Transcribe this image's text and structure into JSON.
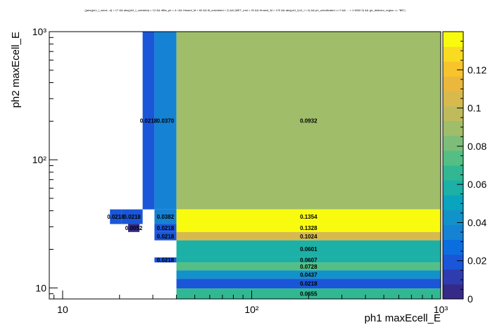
{
  "chart_data": {
    "type": "heatmap",
    "title": "((abs(ph1_l_unlvd...d) > 17 && abs(ph2_l_unlvdeta) < 12 && rlBts_ph < 4 / && Hmeed_M > 60 && fit_unlvdeted < 2) && (MET_met < 20 && Hmeed_M > 170 && abs(ph1_t)<0_l < 0) && ph_unlvdfeated == 0 && ... < 1.5000 0) && (pt_detector_region == \"BB\")",
    "xlabel": "ph1 maxEcell_E",
    "ylabel": "ph2 maxEcell_E",
    "xscale": "log",
    "yscale": "log",
    "xlim": [
      8.5,
      1000
    ],
    "ylim": [
      8.2,
      1000
    ],
    "x_ticks": [
      {
        "value": 10,
        "label": "10"
      },
      {
        "value": 100,
        "label": "10²"
      },
      {
        "value": 1000,
        "label": "10³"
      }
    ],
    "y_ticks": [
      {
        "value": 10,
        "label": "10"
      },
      {
        "value": 100,
        "label": "10²"
      },
      {
        "value": 1000,
        "label": "10³"
      }
    ],
    "z_range": [
      0,
      0.14
    ],
    "z_ticks": [
      "0",
      "0.02",
      "0.04",
      "0.06",
      "0.08",
      "0.1",
      "0.12"
    ],
    "z_tick_values": [
      0,
      0.02,
      0.04,
      0.06,
      0.08,
      0.1,
      0.12
    ],
    "palette": [
      "#352a87",
      "#2e3cb0",
      "#1a56d8",
      "#0b6ee0",
      "#1582d4",
      "#1193c9",
      "#0aa4bf",
      "#1cb0a6",
      "#31b893",
      "#53bf85",
      "#7cbe79",
      "#a0bd69",
      "#bfbb5d",
      "#d7b94e",
      "#eab83d",
      "#f8c42c",
      "#f9db21",
      "#f9fb0e"
    ],
    "cells": [
      {
        "x0": 26.5,
        "x1": 30.6,
        "y0": 41,
        "y1": 1000,
        "value": 0.0218,
        "label": "0.0218"
      },
      {
        "x0": 30.6,
        "x1": 40,
        "y0": 41,
        "y1": 1000,
        "value": 0.037,
        "label": "0.0370"
      },
      {
        "x0": 40,
        "x1": 1000,
        "y0": 41,
        "y1": 1000,
        "value": 0.0932,
        "label": "0.0932"
      },
      {
        "x0": 17.8,
        "x1": 20.5,
        "y0": 31.5,
        "y1": 41,
        "value": 0.0218,
        "label": "0.0218"
      },
      {
        "x0": 20.5,
        "x1": 26.5,
        "y0": 31.5,
        "y1": 41,
        "value": 0.0218,
        "label": "0.0218"
      },
      {
        "x0": 30.6,
        "x1": 40,
        "y0": 31.5,
        "y1": 41,
        "value": 0.0382,
        "label": "0.0382"
      },
      {
        "x0": 40,
        "x1": 1000,
        "y0": 31.5,
        "y1": 41,
        "value": 0.1354,
        "label": "0.1354"
      },
      {
        "x0": 22.2,
        "x1": 25.5,
        "y0": 27.3,
        "y1": 31.5,
        "value": 0.0052,
        "label": "0.0052"
      },
      {
        "x0": 30.6,
        "x1": 40,
        "y0": 27.3,
        "y1": 31.5,
        "value": 0.0218,
        "label": "0.0218"
      },
      {
        "x0": 40,
        "x1": 1000,
        "y0": 27.3,
        "y1": 31.5,
        "value": 0.1328,
        "label": "0.1328"
      },
      {
        "x0": 30.6,
        "x1": 40,
        "y0": 23.5,
        "y1": 27.3,
        "value": 0.0218,
        "label": "0.0218"
      },
      {
        "x0": 40,
        "x1": 1000,
        "y0": 23.5,
        "y1": 27.3,
        "value": 0.1024,
        "label": "0.1024"
      },
      {
        "x0": 40,
        "x1": 1000,
        "y0": 17.3,
        "y1": 23.5,
        "value": 0.0601,
        "label": "0.0601"
      },
      {
        "x0": 30.6,
        "x1": 40,
        "y0": 15.8,
        "y1": 17.3,
        "value": 0.0218,
        "label": "0.0218"
      },
      {
        "x0": 40,
        "x1": 1000,
        "y0": 15.8,
        "y1": 17.3,
        "value": 0.0607,
        "label": "0.0607"
      },
      {
        "x0": 40,
        "x1": 1000,
        "y0": 13.7,
        "y1": 15.8,
        "value": 0.0728,
        "label": "0.0728"
      },
      {
        "x0": 40,
        "x1": 1000,
        "y0": 11.8,
        "y1": 13.7,
        "value": 0.0437,
        "label": "0.0437"
      },
      {
        "x0": 40,
        "x1": 1000,
        "y0": 9.9,
        "y1": 11.8,
        "value": 0.0218,
        "label": "0.0218"
      },
      {
        "x0": 40,
        "x1": 1000,
        "y0": 8.2,
        "y1": 9.9,
        "value": 0.0655,
        "label": "0.0655"
      }
    ]
  }
}
